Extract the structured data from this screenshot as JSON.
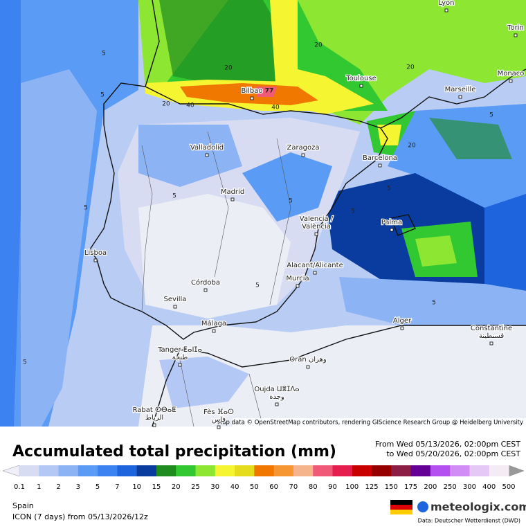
{
  "map": {
    "title": "Accumulated total precipitation (mm)",
    "period_from": "From Wed 05/13/2026, 02:00pm CEST",
    "period_to": "to Wed 05/20/2026, 02:00pm CEST",
    "attribution": "Map data © OpenStreetMap contributors, rendering GIScience Research Group @ Heidelberg University",
    "region": "Spain",
    "model": "ICON (7 days)  from  05/13/2026/12z",
    "brand": "meteologix.com",
    "source": "Data: Deutscher Wetterdienst (DWD)",
    "cities": [
      [
        "Lyon"
      ],
      [
        "Torin"
      ],
      [
        "Monaco"
      ],
      [
        "Toulouse"
      ],
      [
        "Marseille"
      ],
      [
        "Bilbao"
      ],
      [
        "Valladolid"
      ],
      [
        "Zaragoza"
      ],
      [
        "Barcelona"
      ],
      [
        "Madrid"
      ],
      [
        "Valencia /",
        "València"
      ],
      [
        "Palma"
      ],
      [
        "Lisboa"
      ],
      [
        "Alacant/Alicante"
      ],
      [
        "Murcia"
      ],
      [
        "Córdoba"
      ],
      [
        "Sevilla"
      ],
      [
        "Málaga"
      ],
      [
        "Alger"
      ],
      [
        "Constantine",
        "قسنطينة"
      ],
      [
        "Tanger ⵟⴰⵏⵊⴰ",
        "طنجة"
      ],
      [
        "Oran وهران"
      ],
      [
        "Oujda ⵡⴻⵊⴷⴰ",
        "وجدة"
      ],
      [
        "Rabat ⵔⴱⴰⵟ",
        "الرباط"
      ],
      [
        "Fès ⴼⴰⵙ",
        "فاس"
      ]
    ],
    "contour_labels": [
      5,
      5,
      5,
      20,
      20,
      40,
      40,
      20,
      20,
      77,
      5,
      5,
      5,
      5,
      5,
      5,
      20,
      5,
      5
    ],
    "legend": {
      "ticks": [
        0.1,
        1,
        2,
        3,
        5,
        7,
        10,
        15,
        20,
        25,
        30,
        40,
        50,
        60,
        70,
        80,
        90,
        100,
        125,
        150,
        175,
        200,
        250,
        300,
        400,
        500
      ],
      "colors": [
        "#d8dcf2",
        "#b4c8f5",
        "#8cb4f5",
        "#5a9bf5",
        "#3c82f0",
        "#1e64dc",
        "#0a3ca0",
        "#1e8c1e",
        "#32c832",
        "#8ce632",
        "#f5f532",
        "#e6dc1e",
        "#f07800",
        "#f59632",
        "#f5b48c",
        "#f05a78",
        "#e61e50",
        "#c80000",
        "#960000",
        "#8c1e46",
        "#640096",
        "#b450f0",
        "#d28cf5",
        "#e6c8f5",
        "#f5ebf5"
      ]
    }
  }
}
